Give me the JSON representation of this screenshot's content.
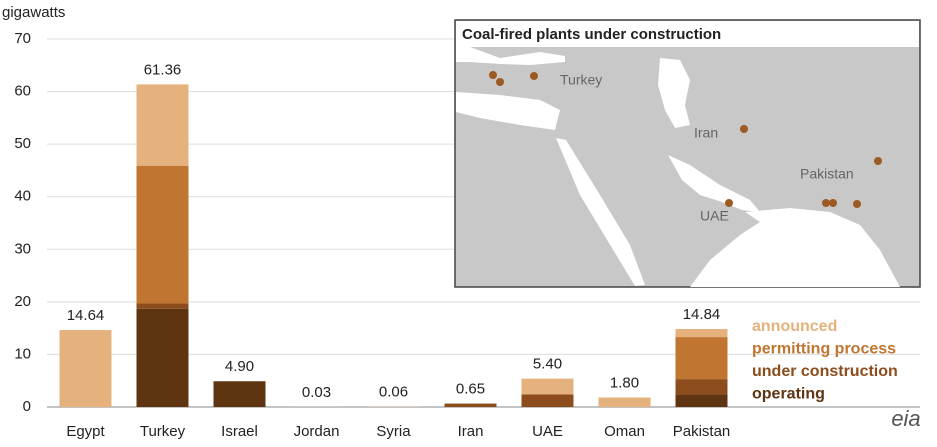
{
  "chart_data": {
    "type": "stacked-bar",
    "y_label": "gigawatts",
    "categories": [
      "Egypt",
      "Turkey",
      "Israel",
      "Jordan",
      "Syria",
      "Iran",
      "UAE",
      "Oman",
      "Pakistan"
    ],
    "series": [
      {
        "name": "operating",
        "color": "#5e3411",
        "values": [
          0,
          18.7,
          4.9,
          0,
          0,
          0,
          0,
          0,
          2.4
        ]
      },
      {
        "name": "under construction",
        "color": "#8c4c1c",
        "values": [
          0,
          1.0,
          0,
          0,
          0,
          0.65,
          2.4,
          0,
          2.9
        ]
      },
      {
        "name": "permitting process",
        "color": "#c07630",
        "values": [
          0,
          26.2,
          0,
          0,
          0,
          0,
          0,
          0,
          8.0
        ]
      },
      {
        "name": "announced",
        "color": "#e5b17c",
        "values": [
          14.64,
          15.46,
          0,
          0.03,
          0.06,
          0,
          3.0,
          1.8,
          1.54
        ]
      }
    ],
    "totals": [
      14.64,
      61.36,
      4.9,
      0.03,
      0.06,
      0.65,
      5.4,
      1.8,
      14.84
    ],
    "total_labels": [
      "14.64",
      "61.36",
      "4.90",
      "0.03",
      "0.06",
      "0.65",
      "5.40",
      "1.80",
      "14.84"
    ],
    "ylim": [
      0,
      70
    ],
    "yticks": [
      0,
      10,
      20,
      30,
      40,
      50,
      60,
      70
    ],
    "grid": true,
    "inset": {
      "title": "Coal-fired plants under construction",
      "labels": [
        "Turkey",
        "Iran",
        "Pakistan",
        "UAE"
      ]
    },
    "logo": "eia"
  }
}
